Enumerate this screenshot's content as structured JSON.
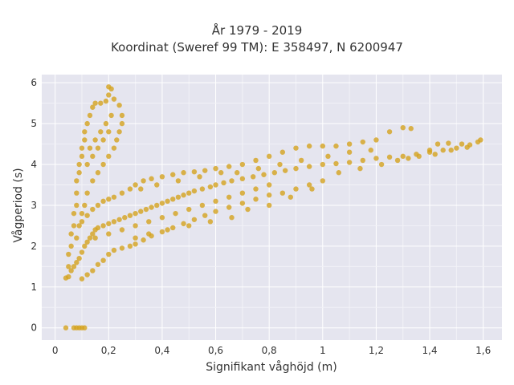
{
  "chart_data": {
    "type": "scatter",
    "title_lines": [
      "År 1979 - 2019",
      "Koordinat (Sweref 99 TM): E 358497, N 6200947"
    ],
    "xlabel": "Signifikant våghöjd (m)",
    "ylabel": "Vågperiod (s)",
    "xlim": [
      -0.05,
      1.67
    ],
    "ylim": [
      -0.3,
      6.2
    ],
    "x_ticks": [
      0,
      0.2,
      0.4,
      0.6,
      0.8,
      1,
      1.2,
      1.4,
      1.6
    ],
    "x_tick_labels": [
      "0",
      "0,2",
      "0,4",
      "0,6",
      "0,8",
      "1",
      "1,2",
      "1,4",
      "1,6"
    ],
    "y_ticks": [
      0,
      1,
      2,
      3,
      4,
      5,
      6
    ],
    "y_tick_labels": [
      "0",
      "1",
      "2",
      "3",
      "4",
      "5",
      "6"
    ],
    "grid": true,
    "legend": "none",
    "background": "#e5e5ef",
    "marker_color": "#d4a21e",
    "points": [
      [
        0.04,
        1.22
      ],
      [
        0.05,
        1.25
      ],
      [
        0.06,
        1.4
      ],
      [
        0.07,
        1.5
      ],
      [
        0.08,
        1.6
      ],
      [
        0.09,
        1.7
      ],
      [
        0.1,
        1.85
      ],
      [
        0.11,
        2.0
      ],
      [
        0.12,
        2.1
      ],
      [
        0.13,
        2.2
      ],
      [
        0.14,
        2.3
      ],
      [
        0.15,
        2.4
      ],
      [
        0.16,
        2.45
      ],
      [
        0.18,
        2.5
      ],
      [
        0.2,
        2.55
      ],
      [
        0.22,
        2.6
      ],
      [
        0.24,
        2.65
      ],
      [
        0.26,
        2.7
      ],
      [
        0.28,
        2.75
      ],
      [
        0.3,
        2.8
      ],
      [
        0.32,
        2.85
      ],
      [
        0.34,
        2.9
      ],
      [
        0.36,
        2.95
      ],
      [
        0.38,
        3.0
      ],
      [
        0.4,
        3.05
      ],
      [
        0.42,
        3.1
      ],
      [
        0.44,
        3.15
      ],
      [
        0.46,
        3.2
      ],
      [
        0.48,
        3.25
      ],
      [
        0.5,
        3.3
      ],
      [
        0.52,
        3.35
      ],
      [
        0.55,
        3.4
      ],
      [
        0.58,
        3.45
      ],
      [
        0.6,
        3.5
      ],
      [
        0.63,
        3.55
      ],
      [
        0.66,
        3.6
      ],
      [
        0.7,
        3.65
      ],
      [
        0.74,
        3.7
      ],
      [
        0.78,
        3.75
      ],
      [
        0.82,
        3.8
      ],
      [
        0.86,
        3.85
      ],
      [
        0.9,
        3.9
      ],
      [
        0.95,
        3.95
      ],
      [
        1.0,
        4.0
      ],
      [
        1.05,
        4.02
      ],
      [
        1.1,
        4.05
      ],
      [
        1.15,
        4.1
      ],
      [
        1.2,
        4.15
      ],
      [
        1.25,
        4.18
      ],
      [
        1.3,
        4.2
      ],
      [
        1.35,
        4.25
      ],
      [
        1.4,
        4.3
      ],
      [
        1.45,
        4.35
      ],
      [
        1.5,
        4.4
      ],
      [
        1.55,
        4.48
      ],
      [
        1.58,
        4.55
      ],
      [
        1.59,
        4.6
      ],
      [
        0.1,
        1.2
      ],
      [
        0.12,
        1.3
      ],
      [
        0.14,
        1.4
      ],
      [
        0.16,
        1.55
      ],
      [
        0.18,
        1.65
      ],
      [
        0.2,
        1.8
      ],
      [
        0.22,
        1.9
      ],
      [
        0.25,
        1.95
      ],
      [
        0.28,
        2.0
      ],
      [
        0.3,
        2.05
      ],
      [
        0.33,
        2.15
      ],
      [
        0.36,
        2.25
      ],
      [
        0.4,
        2.35
      ],
      [
        0.44,
        2.45
      ],
      [
        0.48,
        2.55
      ],
      [
        0.52,
        2.65
      ],
      [
        0.56,
        2.75
      ],
      [
        0.6,
        2.85
      ],
      [
        0.65,
        2.95
      ],
      [
        0.7,
        3.05
      ],
      [
        0.75,
        3.15
      ],
      [
        0.8,
        3.25
      ],
      [
        0.85,
        3.3
      ],
      [
        0.9,
        3.4
      ],
      [
        0.95,
        3.5
      ],
      [
        1.0,
        3.6
      ],
      [
        0.1,
        2.6
      ],
      [
        0.12,
        2.75
      ],
      [
        0.14,
        2.9
      ],
      [
        0.16,
        3.0
      ],
      [
        0.18,
        3.1
      ],
      [
        0.2,
        3.15
      ],
      [
        0.22,
        3.2
      ],
      [
        0.25,
        3.3
      ],
      [
        0.28,
        3.4
      ],
      [
        0.3,
        3.5
      ],
      [
        0.33,
        3.6
      ],
      [
        0.36,
        3.65
      ],
      [
        0.4,
        3.7
      ],
      [
        0.44,
        3.75
      ],
      [
        0.48,
        3.8
      ],
      [
        0.52,
        3.82
      ],
      [
        0.56,
        3.85
      ],
      [
        0.6,
        3.9
      ],
      [
        0.65,
        3.95
      ],
      [
        0.7,
        4.0
      ],
      [
        0.75,
        4.1
      ],
      [
        0.8,
        4.2
      ],
      [
        0.85,
        4.3
      ],
      [
        0.9,
        4.4
      ],
      [
        0.95,
        4.45
      ],
      [
        1.0,
        4.45
      ],
      [
        1.05,
        4.45
      ],
      [
        1.1,
        4.5
      ],
      [
        1.15,
        4.55
      ],
      [
        1.2,
        4.6
      ],
      [
        1.25,
        4.8
      ],
      [
        1.3,
        4.9
      ],
      [
        1.33,
        4.88
      ],
      [
        1.4,
        4.35
      ],
      [
        1.43,
        4.5
      ],
      [
        1.47,
        4.52
      ],
      [
        1.52,
        4.5
      ],
      [
        1.54,
        4.42
      ],
      [
        0.15,
        2.2
      ],
      [
        0.2,
        2.3
      ],
      [
        0.25,
        2.4
      ],
      [
        0.3,
        2.5
      ],
      [
        0.35,
        2.6
      ],
      [
        0.4,
        2.7
      ],
      [
        0.45,
        2.8
      ],
      [
        0.5,
        2.9
      ],
      [
        0.55,
        3.0
      ],
      [
        0.6,
        3.1
      ],
      [
        0.65,
        3.2
      ],
      [
        0.7,
        3.3
      ],
      [
        0.75,
        3.4
      ],
      [
        0.8,
        3.5
      ],
      [
        0.05,
        1.5
      ],
      [
        0.05,
        1.8
      ],
      [
        0.06,
        2.0
      ],
      [
        0.06,
        2.3
      ],
      [
        0.07,
        2.5
      ],
      [
        0.07,
        2.8
      ],
      [
        0.08,
        3.0
      ],
      [
        0.08,
        3.3
      ],
      [
        0.08,
        3.6
      ],
      [
        0.09,
        3.8
      ],
      [
        0.09,
        4.0
      ],
      [
        0.1,
        4.2
      ],
      [
        0.1,
        4.4
      ],
      [
        0.11,
        4.6
      ],
      [
        0.11,
        4.8
      ],
      [
        0.12,
        5.0
      ],
      [
        0.13,
        5.2
      ],
      [
        0.14,
        5.4
      ],
      [
        0.15,
        5.5
      ],
      [
        0.17,
        5.5
      ],
      [
        0.19,
        5.55
      ],
      [
        0.2,
        5.7
      ],
      [
        0.2,
        5.9
      ],
      [
        0.21,
        5.85
      ],
      [
        0.22,
        5.6
      ],
      [
        0.24,
        5.45
      ],
      [
        0.25,
        5.2
      ],
      [
        0.25,
        5.0
      ],
      [
        0.24,
        4.8
      ],
      [
        0.23,
        4.6
      ],
      [
        0.22,
        4.4
      ],
      [
        0.2,
        4.2
      ],
      [
        0.18,
        4.0
      ],
      [
        0.16,
        3.8
      ],
      [
        0.14,
        3.6
      ],
      [
        0.12,
        3.3
      ],
      [
        0.11,
        3.0
      ],
      [
        0.1,
        2.8
      ],
      [
        0.09,
        2.5
      ],
      [
        0.08,
        2.2
      ],
      [
        0.13,
        4.4
      ],
      [
        0.15,
        4.6
      ],
      [
        0.17,
        4.8
      ],
      [
        0.19,
        5.0
      ],
      [
        0.21,
        5.2
      ],
      [
        0.12,
        4.0
      ],
      [
        0.14,
        4.2
      ],
      [
        0.16,
        4.4
      ],
      [
        0.18,
        4.6
      ],
      [
        0.2,
        4.8
      ],
      [
        0.04,
        0.0
      ],
      [
        0.07,
        0.0
      ],
      [
        0.08,
        0.0
      ],
      [
        0.09,
        0.0
      ],
      [
        0.1,
        0.0
      ],
      [
        0.11,
        0.0
      ],
      [
        0.3,
        2.2
      ],
      [
        0.35,
        2.3
      ],
      [
        0.32,
        3.4
      ],
      [
        0.38,
        3.5
      ],
      [
        0.42,
        2.4
      ],
      [
        0.46,
        3.6
      ],
      [
        0.5,
        2.5
      ],
      [
        0.54,
        3.7
      ],
      [
        0.58,
        2.6
      ],
      [
        0.62,
        3.8
      ],
      [
        0.66,
        2.7
      ],
      [
        0.68,
        3.8
      ],
      [
        0.72,
        2.9
      ],
      [
        0.76,
        3.9
      ],
      [
        0.8,
        3.0
      ],
      [
        0.84,
        4.0
      ],
      [
        0.88,
        3.2
      ],
      [
        0.92,
        4.1
      ],
      [
        0.96,
        3.4
      ],
      [
        1.02,
        4.2
      ],
      [
        1.06,
        3.8
      ],
      [
        1.1,
        4.3
      ],
      [
        1.14,
        3.9
      ],
      [
        1.18,
        4.35
      ],
      [
        1.22,
        4.0
      ],
      [
        1.28,
        4.1
      ],
      [
        1.32,
        4.15
      ],
      [
        1.36,
        4.2
      ],
      [
        1.42,
        4.25
      ],
      [
        1.48,
        4.35
      ]
    ]
  }
}
